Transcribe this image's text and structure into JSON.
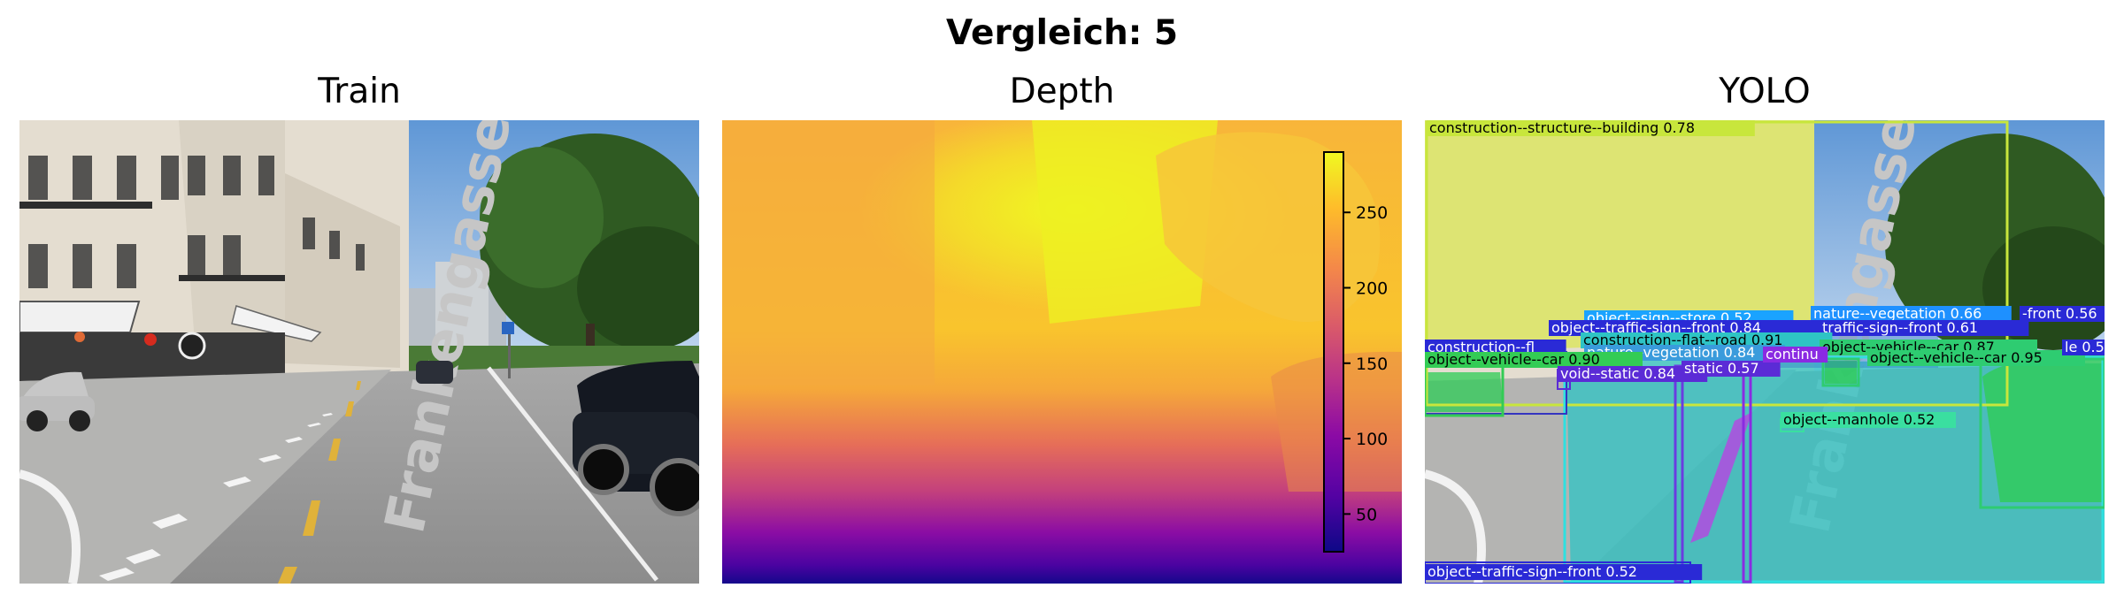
{
  "figure": {
    "suptitle": "Vergleich: 5",
    "panels": [
      {
        "id": "train",
        "title": "Train"
      },
      {
        "id": "depth",
        "title": "Depth"
      },
      {
        "id": "yolo",
        "title": "YOLO"
      }
    ]
  },
  "scene": {
    "street_text": "Frankengasse"
  },
  "colorbar": {
    "colormap": "plasma",
    "ticks": [
      "250",
      "200",
      "150",
      "100",
      "50"
    ],
    "tick_values": [
      250,
      200,
      150,
      100,
      50
    ],
    "range": [
      25,
      290
    ]
  },
  "detections": [
    {
      "label": "construction--structure--building 0.78",
      "color": "#c8e63c"
    },
    {
      "label": "nature--vegetation 0.66",
      "color": "#1e90ff"
    },
    {
      "label": "object--sign--store 0.52",
      "color": "#1aa3ff"
    },
    {
      "label": "object--traffic-sign--front 0.84",
      "color": "#2a2ad6"
    },
    {
      "label": "traffic-sign--front 0.61",
      "color": "#2a2ad6"
    },
    {
      "label": "-front 0.56",
      "color": "#2a2ad6"
    },
    {
      "label": "construction--flat--road 0.91",
      "color": "#2ec4c4"
    },
    {
      "label": "construction--fl",
      "color": "#2a2ad6"
    },
    {
      "label": "nature--vegetation 0.84",
      "color": "#3a9bdc"
    },
    {
      "label": "object--vehicle--car 0.90",
      "color": "#33cc55"
    },
    {
      "label": "object--vehicle--car 0.87",
      "color": "#2ecc71"
    },
    {
      "label": "object--vehicle--car 0.95",
      "color": "#2ecc71"
    },
    {
      "label": "le 0.52",
      "color": "#2a2ad6"
    },
    {
      "label": "void--static 0.84",
      "color": "#5b2bd6"
    },
    {
      "label": "static 0.57",
      "color": "#5b2bd6"
    },
    {
      "label": "continu",
      "color": "#8a2be2"
    },
    {
      "label": "object--manhole 0.52",
      "color": "#3adfa0"
    },
    {
      "label": "object--traffic-sign--front 0.52",
      "color": "#2a2ad6"
    }
  ]
}
